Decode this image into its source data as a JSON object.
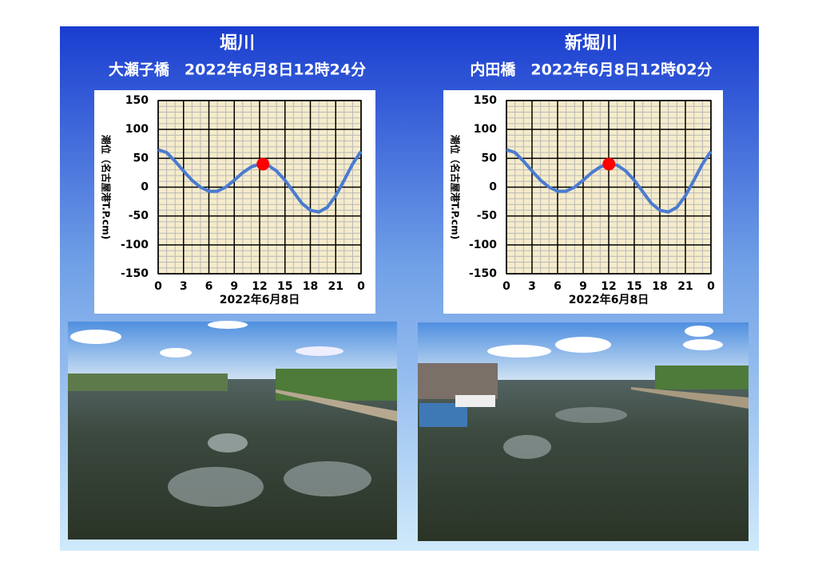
{
  "chart_data": [
    {
      "type": "line",
      "title": "堀川",
      "subtitle": "大瀬子橋　2022年6月8日12時24分",
      "xlabel": "2022年6月8日",
      "ylabel": "潮位（名古屋港T.P.cm)",
      "xlim": [
        0,
        24
      ],
      "xticks": [
        0,
        3,
        6,
        9,
        12,
        15,
        18,
        21,
        {
          "value": 24,
          "label": "0"
        }
      ],
      "ylim": [
        -150,
        150
      ],
      "yticks": [
        -150,
        -100,
        -50,
        0,
        50,
        100,
        150
      ],
      "grid": true,
      "x": [
        0,
        1,
        2,
        3,
        4,
        5,
        6,
        7,
        8,
        9,
        10,
        11,
        12,
        13,
        14,
        15,
        16,
        17,
        18,
        19,
        20,
        21,
        22,
        23,
        24
      ],
      "series": [
        {
          "color": "#4a7bd0",
          "values": [
            65,
            60,
            45,
            28,
            12,
            0,
            -7,
            -7,
            0,
            12,
            25,
            35,
            40,
            38,
            28,
            12,
            -8,
            -28,
            -40,
            -43,
            -35,
            -15,
            12,
            40,
            62
          ]
        }
      ],
      "marker": {
        "x": 12.4,
        "y": 40,
        "color": "#ff0000"
      }
    },
    {
      "type": "line",
      "title": "新堀川",
      "subtitle": "内田橋　2022年6月8日12時02分",
      "xlabel": "2022年6月8日",
      "ylabel": "潮位（名古屋港T.P.cm)",
      "xlim": [
        0,
        24
      ],
      "xticks": [
        0,
        3,
        6,
        9,
        12,
        15,
        18,
        21,
        {
          "value": 24,
          "label": "0"
        }
      ],
      "ylim": [
        -150,
        150
      ],
      "yticks": [
        -150,
        -100,
        -50,
        0,
        50,
        100,
        150
      ],
      "grid": true,
      "x": [
        0,
        1,
        2,
        3,
        4,
        5,
        6,
        7,
        8,
        9,
        10,
        11,
        12,
        13,
        14,
        15,
        16,
        17,
        18,
        19,
        20,
        21,
        22,
        23,
        24
      ],
      "series": [
        {
          "color": "#4a7bd0",
          "values": [
            65,
            60,
            45,
            28,
            12,
            0,
            -7,
            -7,
            0,
            12,
            25,
            35,
            40,
            38,
            28,
            12,
            -8,
            -28,
            -40,
            -43,
            -35,
            -15,
            12,
            40,
            62
          ]
        }
      ],
      "marker": {
        "x": 12.03,
        "y": 40,
        "color": "#ff0000"
      }
    }
  ]
}
